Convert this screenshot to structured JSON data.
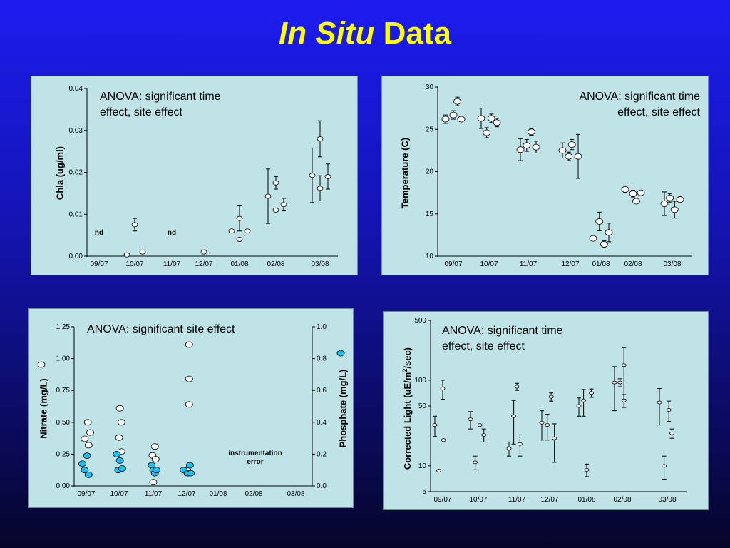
{
  "slide": {
    "title_italic": "In Situ",
    "title_rest": " Data",
    "colors": {
      "title": "#ffff00",
      "panel": "#bfe3e6",
      "nitrate_marker": "#ffffff",
      "phosphate_marker": "#19c1f5"
    }
  },
  "chart_data": [
    {
      "type": "scatter",
      "ylabel": "Chla (ug/ml)",
      "annotation": "ANOVA: significant time\neffect, site effect",
      "ylim": [
        0,
        0.04
      ],
      "yticks": [
        "0.00",
        "0.01",
        "0.02",
        "0.03",
        "0.04"
      ],
      "xticks": [
        "09/07",
        "10/07",
        "11/07",
        "12/07",
        "01/08",
        "02/08",
        "03/08"
      ],
      "notes": [
        {
          "text": "nd",
          "x": "09/07"
        },
        {
          "text": "nd",
          "x": "11/07"
        }
      ],
      "points": [
        {
          "x": "10/07",
          "offset": -1,
          "y": 0.0003,
          "err": 0
        },
        {
          "x": "10/07",
          "offset": 0,
          "y": 0.0075,
          "err": 0.0015
        },
        {
          "x": "10/07",
          "offset": 1,
          "y": 0.001,
          "err": 0
        },
        {
          "x": "12/07",
          "offset": 0,
          "y": 0.001,
          "err": 0
        },
        {
          "x": "01/08",
          "offset": -1,
          "y": 0.006,
          "err": 0
        },
        {
          "x": "01/08",
          "offset": 0,
          "y": 0.009,
          "err": 0.003
        },
        {
          "x": "01/08",
          "offset": 0,
          "y": 0.004,
          "err": 0
        },
        {
          "x": "01/08",
          "offset": 1,
          "y": 0.006,
          "err": 0
        },
        {
          "x": "02/08",
          "offset": -1,
          "y": 0.0143,
          "err": 0.0065
        },
        {
          "x": "02/08",
          "offset": 0,
          "y": 0.0175,
          "err": 0.0015
        },
        {
          "x": "02/08",
          "offset": 0,
          "y": 0.011,
          "err": 0
        },
        {
          "x": "02/08",
          "offset": 1,
          "y": 0.0123,
          "err": 0.0015
        },
        {
          "x": "03/08",
          "offset": -1,
          "y": 0.0193,
          "err": 0.0065
        },
        {
          "x": "03/08",
          "offset": 0,
          "y": 0.028,
          "err": 0.0043
        },
        {
          "x": "03/08",
          "offset": 0,
          "y": 0.0162,
          "err": 0.003
        },
        {
          "x": "03/08",
          "offset": 1,
          "y": 0.019,
          "err": 0.003
        }
      ]
    },
    {
      "type": "scatter",
      "ylabel": "Temperature (C)",
      "annotation": "ANOVA: significant time\neffect, site effect",
      "ylim": [
        10,
        30
      ],
      "yticks": [
        "10",
        "15",
        "20",
        "25",
        "30"
      ],
      "xticks": [
        "09/07",
        "10/07",
        "11/07",
        "12/07",
        "01/08",
        "02/08",
        "03/08"
      ],
      "points": [
        {
          "x": "09/07",
          "offset": -1,
          "y": 26.2,
          "err": 0.5
        },
        {
          "x": "09/07",
          "offset": 0,
          "y": 26.7,
          "err": 0.5
        },
        {
          "x": "09/07",
          "offset": 0.5,
          "y": 28.3,
          "err": 0.5
        },
        {
          "x": "09/07",
          "offset": 1,
          "y": 26.2,
          "err": 0.3
        },
        {
          "x": "10/07",
          "offset": -1,
          "y": 26.3,
          "err": 1.2
        },
        {
          "x": "10/07",
          "offset": -0.3,
          "y": 24.6,
          "err": 0.6
        },
        {
          "x": "10/07",
          "offset": 0.3,
          "y": 26.3,
          "err": 0.5
        },
        {
          "x": "10/07",
          "offset": 1,
          "y": 25.8,
          "err": 0.5
        },
        {
          "x": "11/07",
          "offset": -1,
          "y": 22.6,
          "err": 1.3
        },
        {
          "x": "11/07",
          "offset": -0.2,
          "y": 23.1,
          "err": 0.7
        },
        {
          "x": "11/07",
          "offset": 0.4,
          "y": 24.7,
          "err": 0.4
        },
        {
          "x": "11/07",
          "offset": 1,
          "y": 22.9,
          "err": 0.7
        },
        {
          "x": "12/07",
          "offset": -1,
          "y": 22.5,
          "err": 0.9
        },
        {
          "x": "12/07",
          "offset": -0.2,
          "y": 21.8,
          "err": 0.5
        },
        {
          "x": "12/07",
          "offset": 0.2,
          "y": 23.2,
          "err": 0.6
        },
        {
          "x": "12/07",
          "offset": 1,
          "y": 21.8,
          "err": 2.6
        },
        {
          "x": "01/08",
          "offset": -1,
          "y": 12.1,
          "err": 0
        },
        {
          "x": "01/08",
          "offset": -0.2,
          "y": 14.1,
          "err": 1.1
        },
        {
          "x": "01/08",
          "offset": 0.4,
          "y": 11.4,
          "err": 0.4
        },
        {
          "x": "01/08",
          "offset": 1,
          "y": 12.8,
          "err": 1.1
        },
        {
          "x": "02/08",
          "offset": -1,
          "y": 17.9,
          "err": 0.4
        },
        {
          "x": "02/08",
          "offset": 0,
          "y": 17.4,
          "err": 0.4
        },
        {
          "x": "02/08",
          "offset": 0.4,
          "y": 16.5,
          "err": 0
        },
        {
          "x": "02/08",
          "offset": 1,
          "y": 17.5,
          "err": 0.3
        },
        {
          "x": "03/08",
          "offset": -1,
          "y": 16.2,
          "err": 1.4
        },
        {
          "x": "03/08",
          "offset": -0.3,
          "y": 16.9,
          "err": 0.5
        },
        {
          "x": "03/08",
          "offset": 0.3,
          "y": 15.5,
          "err": 1.0
        },
        {
          "x": "03/08",
          "offset": 1,
          "y": 16.7,
          "err": 0.4
        }
      ]
    },
    {
      "type": "scatter",
      "ylabel": "Nitrate (mg/L)",
      "ylabel2": "Phosphate (mg/L)",
      "annotation": "ANOVA: significant site effect",
      "note": "instrumentation\nerror",
      "ylim": [
        0,
        1.25
      ],
      "ylim2": [
        0,
        1.0
      ],
      "yticks": [
        "0.00",
        "0.25",
        "0.50",
        "0.75",
        "1.00",
        "1.25"
      ],
      "yticks2": [
        "0.0",
        "0.2",
        "0.4",
        "0.6",
        "0.8",
        "1.0"
      ],
      "xticks": [
        "09/07",
        "10/07",
        "11/07",
        "12/07",
        "01/08",
        "02/08",
        "03/08"
      ],
      "series": [
        {
          "name": "Nitrate (mg/L)",
          "marker": "white",
          "points": [
            {
              "x": "09/07",
              "offset": 0.2,
              "y": 0.5
            },
            {
              "x": "09/07",
              "offset": 0.5,
              "y": 0.42
            },
            {
              "x": "09/07",
              "offset": -0.2,
              "y": 0.37
            },
            {
              "x": "09/07",
              "offset": 0.3,
              "y": 0.32
            },
            {
              "x": "10/07",
              "offset": 0.1,
              "y": 0.61
            },
            {
              "x": "10/07",
              "offset": 0.3,
              "y": 0.5
            },
            {
              "x": "10/07",
              "offset": 0,
              "y": 0.38
            },
            {
              "x": "10/07",
              "offset": 0.3,
              "y": 0.27
            },
            {
              "x": "11/07",
              "offset": 0.2,
              "y": 0.31
            },
            {
              "x": "11/07",
              "offset": -0.1,
              "y": 0.24
            },
            {
              "x": "11/07",
              "offset": 0.3,
              "y": 0.21
            },
            {
              "x": "11/07",
              "offset": 0,
              "y": 0.03
            },
            {
              "x": "12/07",
              "offset": 0.3,
              "y": 1.11
            },
            {
              "x": "12/07",
              "offset": 0.3,
              "y": 0.84
            },
            {
              "x": "12/07",
              "offset": 0.3,
              "y": 0.64
            },
            {
              "x": "12/07",
              "offset": 0.1,
              "y": 0.12
            }
          ]
        },
        {
          "name": "Phosphate (mg/L)",
          "marker": "cyan",
          "points": [
            {
              "x": "09/07",
              "offset": -0.5,
              "y": 0.14
            },
            {
              "x": "09/07",
              "offset": -0.2,
              "y": 0.1
            },
            {
              "x": "09/07",
              "offset": 0.1,
              "y": 0.19
            },
            {
              "x": "09/07",
              "offset": 0.3,
              "y": 0.07
            },
            {
              "x": "10/07",
              "offset": -0.3,
              "y": 0.2
            },
            {
              "x": "10/07",
              "offset": 0.1,
              "y": 0.16
            },
            {
              "x": "10/07",
              "offset": -0.1,
              "y": 0.1
            },
            {
              "x": "10/07",
              "offset": 0.4,
              "y": 0.11
            },
            {
              "x": "11/07",
              "offset": -0.2,
              "y": 0.13
            },
            {
              "x": "11/07",
              "offset": 0,
              "y": 0.1
            },
            {
              "x": "11/07",
              "offset": 0.2,
              "y": 0.08
            },
            {
              "x": "11/07",
              "offset": 0.4,
              "y": 0.1
            },
            {
              "x": "12/07",
              "offset": -0.4,
              "y": 0.1
            },
            {
              "x": "12/07",
              "offset": 0.1,
              "y": 0.08
            },
            {
              "x": "12/07",
              "offset": 0.4,
              "y": 0.13
            },
            {
              "x": "12/07",
              "offset": 0.5,
              "y": 0.08
            },
            {
              "x": "03/08",
              "offset": 2.5,
              "y": 0.84
            }
          ]
        }
      ]
    },
    {
      "type": "scatter",
      "ylabel": "Corrected Light (uE/m²/sec)",
      "annotation": "ANOVA: significant time\neffect, site effect",
      "yscale": "log",
      "ylim": [
        5,
        500
      ],
      "yticks": [
        "5",
        "10",
        "50",
        "100",
        "500"
      ],
      "xticks": [
        "09/07",
        "10/07",
        "11/07",
        "12/07",
        "01/08",
        "02/08",
        "03/08"
      ],
      "points": [
        {
          "x": "09/07",
          "offset": -1,
          "y": 30,
          "err": 8
        },
        {
          "x": "09/07",
          "offset": -0.5,
          "y": 8.8,
          "err": 0
        },
        {
          "x": "09/07",
          "offset": 0,
          "y": 80,
          "err": 20
        },
        {
          "x": "09/07",
          "offset": 0.1,
          "y": 20,
          "err": 0
        },
        {
          "x": "10/07",
          "offset": -1,
          "y": 35,
          "err": 8
        },
        {
          "x": "10/07",
          "offset": -0.4,
          "y": 11,
          "err": 2
        },
        {
          "x": "10/07",
          "offset": 0.2,
          "y": 30,
          "err": 0
        },
        {
          "x": "10/07",
          "offset": 0.7,
          "y": 23,
          "err": 4
        },
        {
          "x": "11/07",
          "offset": -1,
          "y": 16,
          "err": 3
        },
        {
          "x": "11/07",
          "offset": -0.4,
          "y": 38,
          "err": 20
        },
        {
          "x": "11/07",
          "offset": 0,
          "y": 84,
          "err": 8
        },
        {
          "x": "11/07",
          "offset": 0.4,
          "y": 18,
          "err": 5
        },
        {
          "x": "12/07",
          "offset": -1,
          "y": 32,
          "err": 12
        },
        {
          "x": "12/07",
          "offset": -0.3,
          "y": 30,
          "err": 10
        },
        {
          "x": "12/07",
          "offset": 0.2,
          "y": 64,
          "err": 7
        },
        {
          "x": "12/07",
          "offset": 0.6,
          "y": 21,
          "err": 10
        },
        {
          "x": "01/08",
          "offset": -1,
          "y": 50,
          "err": 12
        },
        {
          "x": "01/08",
          "offset": -0.4,
          "y": 58,
          "err": 20
        },
        {
          "x": "01/08",
          "offset": 0,
          "y": 9,
          "err": 1.5
        },
        {
          "x": "01/08",
          "offset": 0.6,
          "y": 71,
          "err": 8
        },
        {
          "x": "02/08",
          "offset": -1,
          "y": 94,
          "err": 50
        },
        {
          "x": "02/08",
          "offset": -0.3,
          "y": 94,
          "err": 10
        },
        {
          "x": "02/08",
          "offset": 0.2,
          "y": 150,
          "err": 90
        },
        {
          "x": "02/08",
          "offset": 0.2,
          "y": 58,
          "err": 10
        },
        {
          "x": "03/08",
          "offset": -1,
          "y": 55,
          "err": 25
        },
        {
          "x": "03/08",
          "offset": -0.4,
          "y": 10,
          "err": 3
        },
        {
          "x": "03/08",
          "offset": 0.2,
          "y": 45,
          "err": 12
        },
        {
          "x": "03/08",
          "offset": 0.6,
          "y": 24,
          "err": 3
        }
      ]
    }
  ]
}
